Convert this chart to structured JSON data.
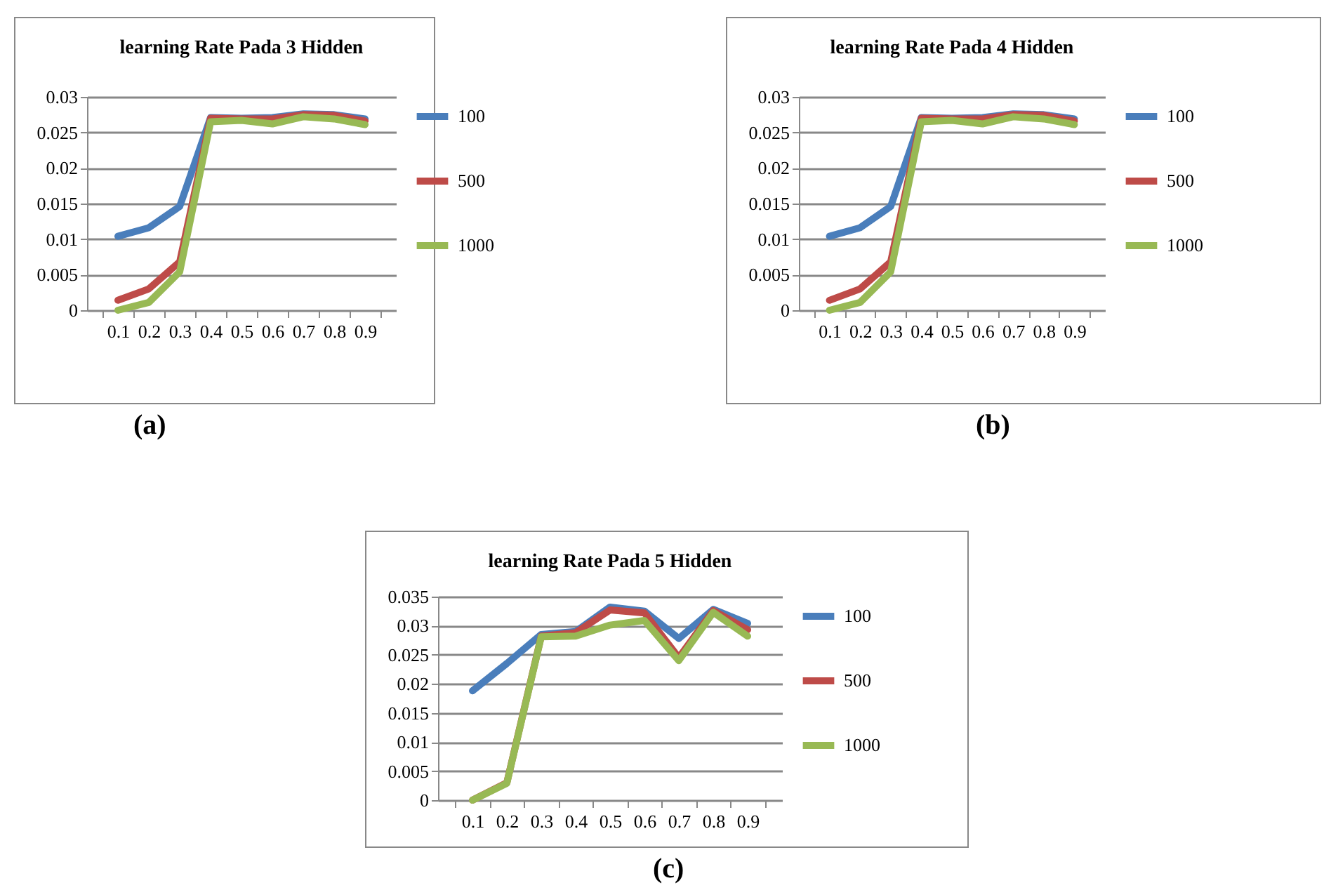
{
  "chart_data": [
    {
      "type": "line",
      "title": "learning Rate Pada 3 Hidden",
      "categories": [
        "0.1",
        "0.2",
        "0.3",
        "0.4",
        "0.5",
        "0.6",
        "0.7",
        "0.8",
        "0.9"
      ],
      "series": [
        {
          "name": "100",
          "color": "#4a7ebb",
          "values": [
            0.0104,
            0.0116,
            0.0146,
            0.0271,
            0.027,
            0.0271,
            0.0276,
            0.0275,
            0.0269
          ]
        },
        {
          "name": "500",
          "color": "#be4b48",
          "values": [
            0.0014,
            0.003,
            0.0068,
            0.027,
            0.0269,
            0.0269,
            0.0275,
            0.0274,
            0.0266
          ]
        },
        {
          "name": "1000",
          "color": "#98b954",
          "values": [
            0,
            0.0011,
            0.0054,
            0.0265,
            0.0267,
            0.0262,
            0.0272,
            0.0269,
            0.0261
          ]
        }
      ],
      "ylim": [
        0,
        0.03
      ],
      "yticks": [
        0,
        0.005,
        0.01,
        0.015,
        0.02,
        0.025,
        0.03
      ],
      "grid": "y",
      "legend": "right",
      "marker": "none",
      "annotations": [
        "(a)"
      ]
    },
    {
      "type": "line",
      "title": "learning Rate Pada 4 Hidden",
      "categories": [
        "0.1",
        "0.2",
        "0.3",
        "0.4",
        "0.5",
        "0.6",
        "0.7",
        "0.8",
        "0.9"
      ],
      "series": [
        {
          "name": "100",
          "color": "#4a7ebb",
          "values": [
            0.0104,
            0.0116,
            0.0146,
            0.0271,
            0.027,
            0.0271,
            0.0276,
            0.0275,
            0.0269
          ]
        },
        {
          "name": "500",
          "color": "#be4b48",
          "values": [
            0.0014,
            0.003,
            0.0068,
            0.027,
            0.0269,
            0.0269,
            0.0275,
            0.0274,
            0.0266
          ]
        },
        {
          "name": "1000",
          "color": "#98b954",
          "values": [
            0,
            0.0011,
            0.0054,
            0.0265,
            0.0267,
            0.0262,
            0.0272,
            0.0269,
            0.0261
          ]
        }
      ],
      "ylim": [
        0,
        0.03
      ],
      "yticks": [
        0,
        0.005,
        0.01,
        0.015,
        0.02,
        0.025,
        0.03
      ],
      "grid": "y",
      "legend": "right",
      "marker": "none",
      "annotations": [
        "(b)"
      ]
    },
    {
      "type": "line",
      "title": "learning Rate Pada 5 Hidden",
      "categories": [
        "0.1",
        "0.2",
        "0.3",
        "0.4",
        "0.5",
        "0.6",
        "0.7",
        "0.8",
        "0.9"
      ],
      "series": [
        {
          "name": "100",
          "color": "#4a7ebb",
          "values": [
            0.0188,
            0.0235,
            0.0285,
            0.029,
            0.0332,
            0.0325,
            0.0278,
            0.0328,
            0.0304
          ]
        },
        {
          "name": "500",
          "color": "#be4b48",
          "values": [
            0,
            0.003,
            0.0282,
            0.0288,
            0.0327,
            0.0322,
            0.0245,
            0.0326,
            0.0293
          ]
        },
        {
          "name": "1000",
          "color": "#98b954",
          "values": [
            0,
            0.0029,
            0.0281,
            0.0282,
            0.0301,
            0.0309,
            0.024,
            0.0323,
            0.0282
          ]
        }
      ],
      "ylim": [
        0,
        0.035
      ],
      "yticks": [
        0,
        0.005,
        0.01,
        0.015,
        0.02,
        0.025,
        0.03,
        0.035
      ],
      "grid": "y",
      "legend": "right",
      "marker": "none",
      "annotations": [
        "(c)"
      ]
    }
  ]
}
